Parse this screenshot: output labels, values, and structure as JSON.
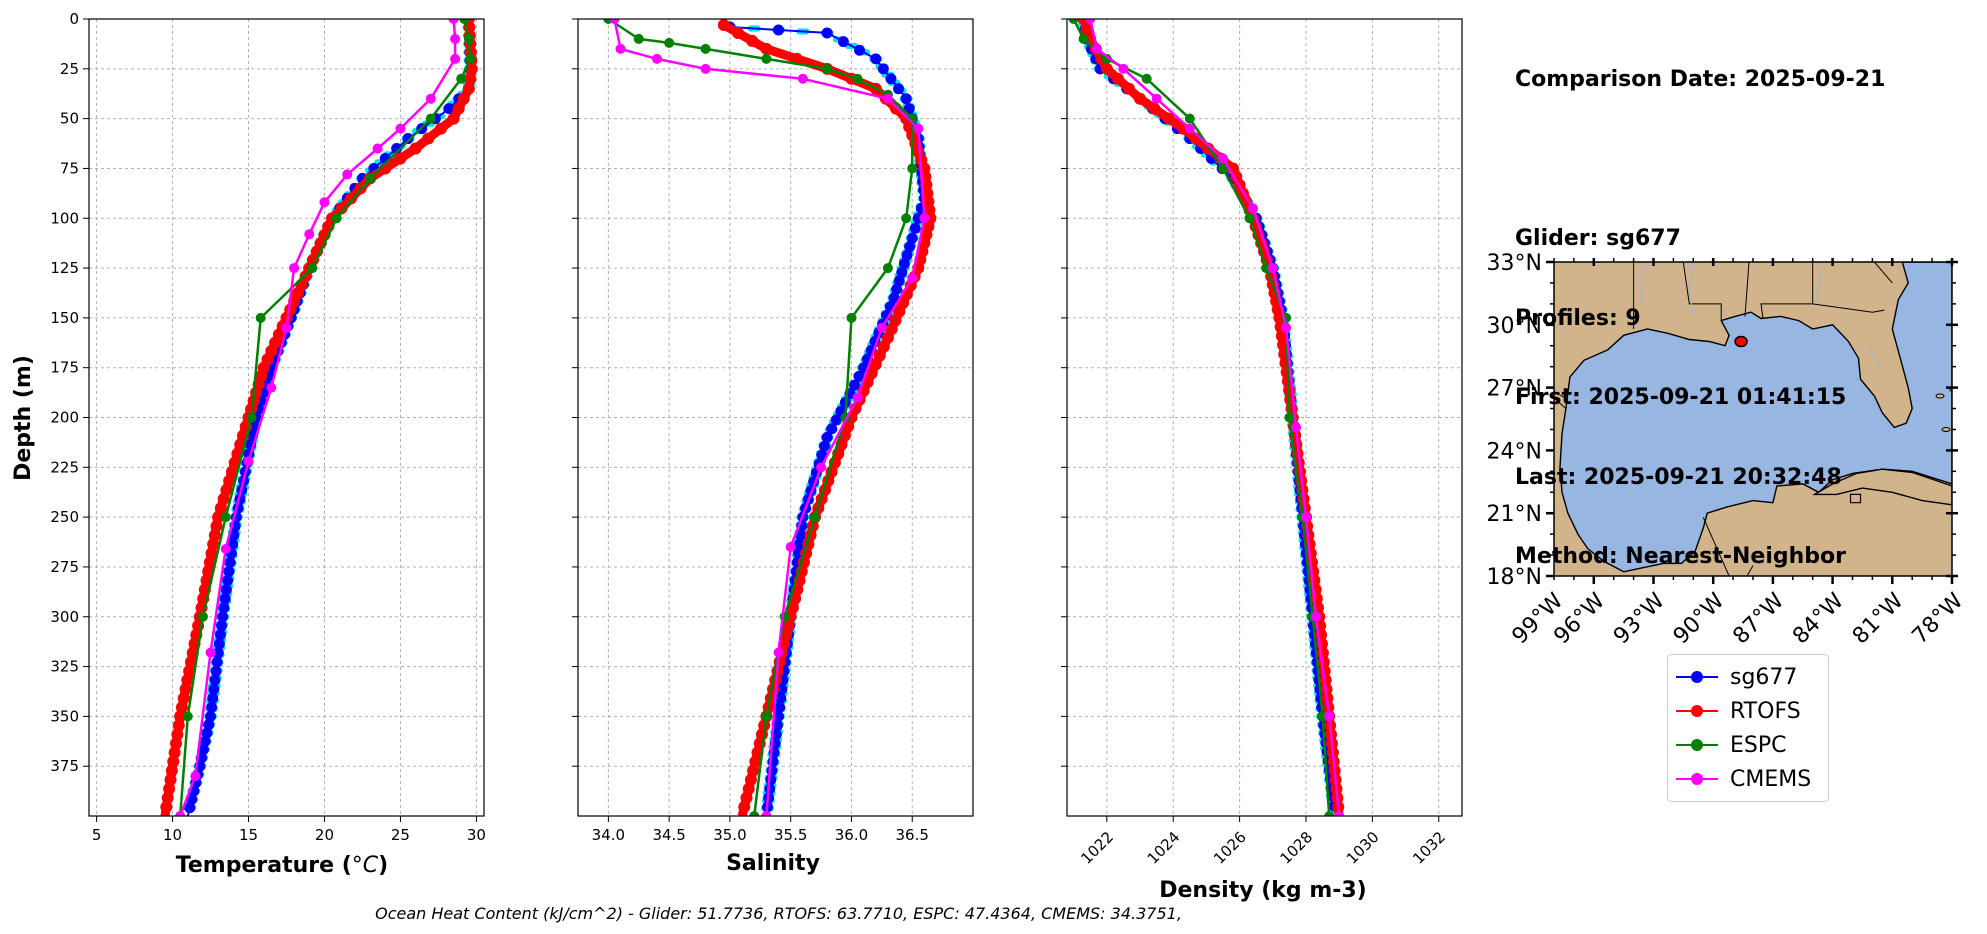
{
  "chart_data": [
    {
      "type": "line",
      "xlabel": "Temperature (°C)",
      "ylabel": "Depth (m)",
      "xlim": [
        4.5,
        30.5
      ],
      "ylim": [
        400,
        0
      ],
      "xticks": [
        5,
        10,
        15,
        20,
        25,
        30
      ],
      "yticks": [
        0,
        25,
        50,
        75,
        100,
        125,
        150,
        175,
        200,
        225,
        250,
        275,
        300,
        325,
        350,
        375
      ],
      "grid": true,
      "series": [
        {
          "name": "sg677",
          "color": "#0000ff",
          "x": [
            29.5,
            29.6,
            29.5,
            28.2,
            25.5,
            22.5,
            20.5,
            19.0,
            17.8,
            16.5,
            15.5,
            14.2,
            13.3,
            12.5,
            11.8,
            11.0
          ],
          "y": [
            0,
            25,
            35,
            45,
            60,
            80,
            100,
            125,
            150,
            175,
            200,
            250,
            300,
            350,
            375,
            400
          ]
        },
        {
          "name": "RTOFS",
          "color": "#ff0000",
          "x": [
            29.5,
            29.7,
            29.5,
            28.5,
            26.0,
            23.0,
            20.5,
            19.0,
            17.5,
            16.0,
            15.0,
            13.0,
            11.8,
            10.5,
            9.5
          ],
          "y": [
            0,
            25,
            35,
            50,
            65,
            80,
            100,
            125,
            150,
            175,
            200,
            250,
            300,
            350,
            400
          ]
        },
        {
          "name": "ESPC",
          "color": "#008000",
          "x": [
            29.2,
            29.5,
            29.6,
            29.0,
            27.0,
            23.0,
            20.8,
            19.2,
            15.8,
            15.2,
            13.5,
            12.0,
            11.0,
            10.5
          ],
          "y": [
            0,
            10,
            20,
            30,
            50,
            80,
            100,
            125,
            150,
            200,
            250,
            300,
            350,
            400
          ]
        },
        {
          "name": "CMEMS",
          "color": "#ff00ff",
          "x": [
            28.5,
            28.6,
            28.6,
            27.0,
            25.0,
            23.5,
            21.5,
            20.0,
            19.0,
            18.0,
            17.5,
            16.5,
            15.0,
            13.5,
            12.5,
            11.5,
            10.5
          ],
          "y": [
            0,
            10,
            20,
            40,
            55,
            65,
            78,
            92,
            108,
            125,
            155,
            185,
            222,
            266,
            318,
            380,
            400
          ]
        }
      ]
    },
    {
      "type": "line",
      "xlabel": "Salinity",
      "xlim": [
        33.75,
        37.0
      ],
      "ylim": [
        400,
        0
      ],
      "xticks": [
        34.0,
        34.5,
        35.0,
        35.5,
        36.0,
        36.5
      ],
      "grid": true,
      "series": [
        {
          "name": "sg677",
          "color": "#0000ff",
          "x": [
            35.0,
            35.8,
            36.2,
            36.45,
            36.55,
            36.6,
            36.5,
            36.35,
            36.1,
            35.8,
            35.6,
            35.5,
            35.4,
            35.3
          ],
          "y": [
            4,
            7,
            20,
            40,
            60,
            90,
            110,
            140,
            175,
            210,
            250,
            300,
            350,
            400
          ]
        },
        {
          "name": "RTOFS",
          "color": "#ff0000",
          "x": [
            34.95,
            35.3,
            35.8,
            36.2,
            36.45,
            36.6,
            36.65,
            36.55,
            36.3,
            36.0,
            35.7,
            35.5,
            35.3,
            35.1
          ],
          "y": [
            3,
            15,
            25,
            35,
            50,
            75,
            100,
            125,
            160,
            200,
            250,
            300,
            350,
            400
          ]
        },
        {
          "name": "ESPC",
          "color": "#008000",
          "x": [
            34.0,
            34.25,
            34.5,
            34.8,
            35.3,
            35.8,
            36.05,
            36.3,
            36.5,
            36.5,
            36.45,
            36.3,
            36.0,
            35.95,
            35.7,
            35.45,
            35.3,
            35.2
          ],
          "y": [
            0,
            10,
            12,
            15,
            20,
            25,
            30,
            38,
            50,
            75,
            100,
            125,
            150,
            200,
            250,
            300,
            350,
            400
          ]
        },
        {
          "name": "CMEMS",
          "color": "#ff00ff",
          "x": [
            34.05,
            34.1,
            34.4,
            34.8,
            35.6,
            36.3,
            36.55,
            36.6,
            36.5,
            36.25,
            36.05,
            35.75,
            35.5,
            35.4,
            35.3
          ],
          "y": [
            0,
            15,
            20,
            25,
            30,
            40,
            55,
            100,
            130,
            155,
            190,
            225,
            265,
            318,
            400
          ]
        }
      ]
    },
    {
      "type": "line",
      "xlabel": "Density (kg m-3)",
      "xlim": [
        1020.8,
        1032.7
      ],
      "ylim": [
        400,
        0
      ],
      "xticks": [
        1022,
        1024,
        1026,
        1028,
        1030,
        1032
      ],
      "grid": true,
      "series": [
        {
          "name": "sg677",
          "color": "#0000ff",
          "x": [
            1021.3,
            1021.4,
            1021.8,
            1023.0,
            1024.5,
            1025.8,
            1026.5,
            1027.0,
            1027.3,
            1027.6,
            1027.9,
            1028.2,
            1028.5,
            1028.8,
            1028.9
          ],
          "y": [
            0,
            10,
            25,
            40,
            60,
            80,
            100,
            125,
            150,
            200,
            250,
            300,
            350,
            390,
            400
          ]
        },
        {
          "name": "RTOFS",
          "color": "#ff0000",
          "x": [
            1021.3,
            1021.5,
            1022.0,
            1023.0,
            1024.3,
            1025.8,
            1026.4,
            1026.9,
            1027.2,
            1027.6,
            1028.0,
            1028.4,
            1028.7,
            1029.0
          ],
          "y": [
            0,
            10,
            25,
            40,
            55,
            75,
            100,
            125,
            150,
            200,
            250,
            300,
            350,
            400
          ]
        },
        {
          "name": "ESPC",
          "color": "#008000",
          "x": [
            1021.0,
            1021.3,
            1022.0,
            1023.2,
            1024.5,
            1025.5,
            1026.3,
            1026.8,
            1027.4,
            1027.5,
            1027.9,
            1028.2,
            1028.5,
            1028.7
          ],
          "y": [
            0,
            10,
            20,
            30,
            50,
            75,
            100,
            125,
            150,
            200,
            250,
            300,
            350,
            400
          ]
        },
        {
          "name": "CMEMS",
          "color": "#ff00ff",
          "x": [
            1021.5,
            1021.7,
            1022.5,
            1023.5,
            1024.5,
            1025.5,
            1026.4,
            1027.0,
            1027.4,
            1027.7,
            1028.0,
            1028.3,
            1028.7,
            1029.0
          ],
          "y": [
            0,
            15,
            25,
            40,
            55,
            70,
            95,
            125,
            155,
            205,
            250,
            300,
            350,
            400
          ]
        }
      ]
    }
  ],
  "axes_labels": {
    "ylabel": "Depth (m)",
    "xlabel_temperature": "Temperature (",
    "xlabel_temperature_unit": "°C",
    "xlabel_salinity": "Salinity",
    "xlabel_density": "Density (kg m-3)"
  },
  "info": {
    "comparison_date": "Comparison Date: 2025-09-21",
    "glider": "Glider: sg677",
    "profiles": "Profiles: 9",
    "first": "First: 2025-09-21 01:41:15",
    "last": "Last: 2025-09-21 20:32:48",
    "method": "Method: Nearest-Neighbor"
  },
  "map": {
    "lat_ticks": [
      "33°N",
      "30°N",
      "27°N",
      "24°N",
      "21°N",
      "18°N"
    ],
    "lon_ticks": [
      "99°W",
      "96°W",
      "93°W",
      "90°W",
      "87°W",
      "84°W",
      "81°W",
      "78°W"
    ],
    "land_color": "#d2b48c",
    "ocean_color": "#97b6e1",
    "glider_position": {
      "lat": 29.2,
      "lon": -88.6
    }
  },
  "legend": [
    {
      "label": "sg677",
      "color": "#0000ff"
    },
    {
      "label": "RTOFS",
      "color": "#ff0000"
    },
    {
      "label": "ESPC",
      "color": "#008000"
    },
    {
      "label": "CMEMS",
      "color": "#ff00ff"
    }
  ],
  "footer": "Ocean Heat Content (kJ/cm^2) - Glider: 51.7736,  RTOFS: 63.7710,  ESPC: 47.4364,  CMEMS: 34.3751,"
}
